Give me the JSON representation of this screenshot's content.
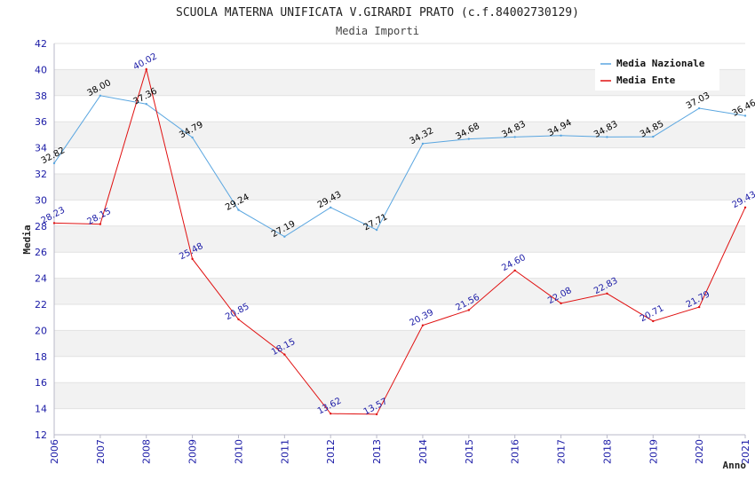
{
  "chart_data": {
    "type": "line",
    "title": "SCUOLA MATERNA UNIFICATA V.GIRARDI PRATO (c.f.84002730129)",
    "subtitle": "Media Importi",
    "xlabel": "Anno",
    "ylabel": "Media",
    "ylim": [
      12,
      42
    ],
    "yticks": [
      "12",
      "14",
      "16",
      "18",
      "20",
      "22",
      "24",
      "26",
      "28",
      "30",
      "32",
      "34",
      "36",
      "38",
      "40",
      "42"
    ],
    "categories": [
      "2006",
      "2007",
      "2008",
      "2009",
      "2010",
      "2011",
      "2012",
      "2013",
      "2014",
      "2015",
      "2016",
      "2017",
      "2018",
      "2019",
      "2020",
      "2021"
    ],
    "grid": "horizontal alternating bands",
    "legend_position": "top-right",
    "series": [
      {
        "name": "Media Nazionale",
        "color": "#5aa6e0",
        "label_color": "#000000",
        "values": [
          32.82,
          38.0,
          37.36,
          34.79,
          29.24,
          27.19,
          29.43,
          27.71,
          34.32,
          34.68,
          34.83,
          34.94,
          34.83,
          34.85,
          37.03,
          36.46
        ],
        "labels": [
          "32.82",
          "38.00",
          "37.36",
          "34.79",
          "29.24",
          "27.19",
          "29.43",
          "27.71",
          "34.32",
          "34.68",
          "34.83",
          "34.94",
          "34.83",
          "34.85",
          "37.03",
          "36.46"
        ]
      },
      {
        "name": "Media Ente",
        "color": "#e01010",
        "label_color": "#1a1aa6",
        "values": [
          28.23,
          28.15,
          40.02,
          25.48,
          20.85,
          18.15,
          13.62,
          13.57,
          20.39,
          21.56,
          24.6,
          22.08,
          22.83,
          20.71,
          21.79,
          29.43
        ],
        "labels": [
          "28.23",
          "28.15",
          "40.02",
          "25.48",
          "20.85",
          "18.15",
          "13.62",
          "13.57",
          "20.39",
          "21.56",
          "24.60",
          "22.08",
          "22.83",
          "20.71",
          "21.79",
          "29.43"
        ]
      }
    ]
  }
}
